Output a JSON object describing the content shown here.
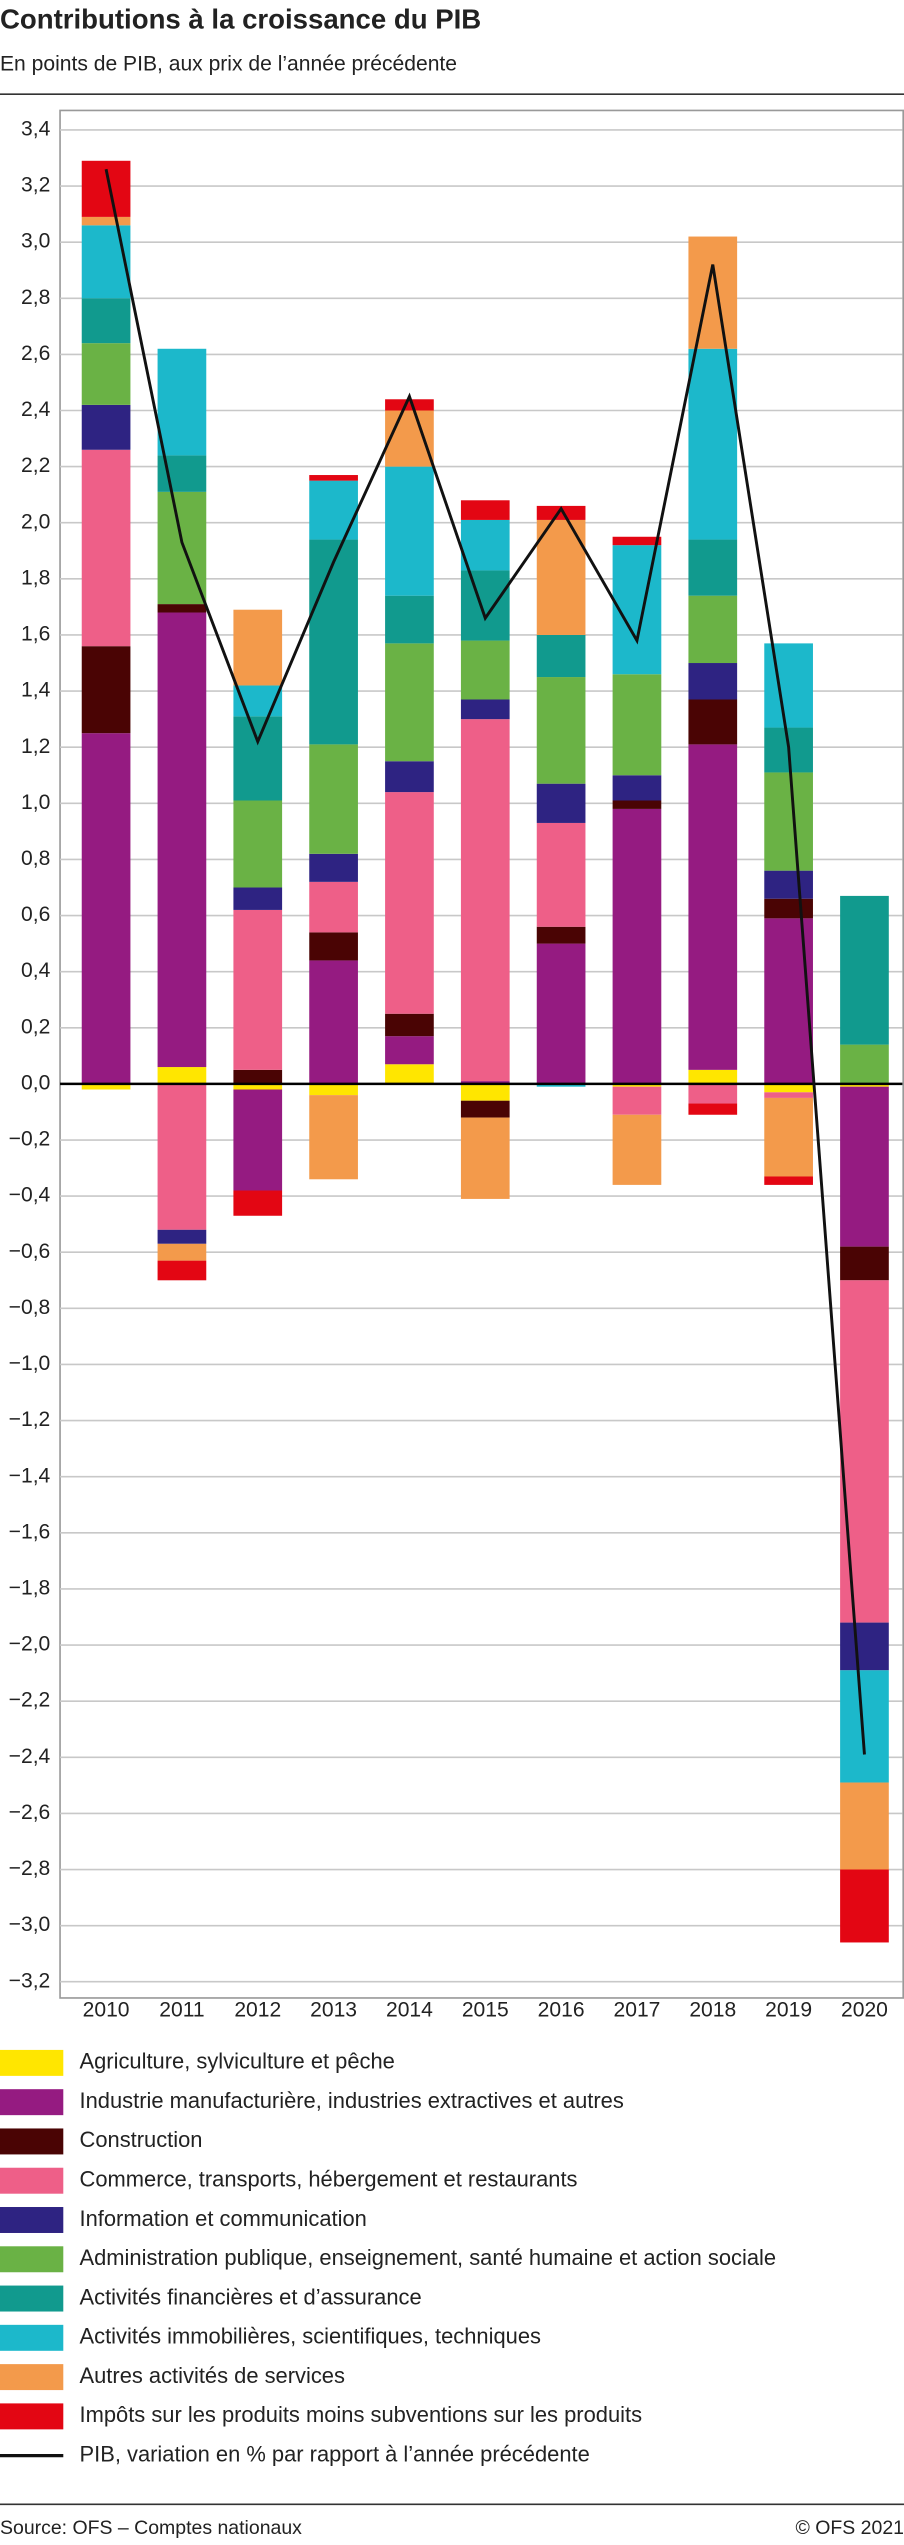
{
  "chart_data": {
    "type": "stacked-bar",
    "title": "Contributions à la croissance du PIB",
    "subtitle": "En points de PIB, aux prix de l’année précédente",
    "source": "Source: OFS – Comptes nationaux",
    "copyright": "© OFS 2021",
    "categories": [
      "2010",
      "2011",
      "2012",
      "2013",
      "2014",
      "2015",
      "2016",
      "2017",
      "2018",
      "2019",
      "2020"
    ],
    "series": [
      {
        "name": "Agriculture, sylviculture et pêche",
        "color": "#ffe600",
        "values": [
          -0.02,
          0.06,
          -0.02,
          -0.04,
          0.07,
          -0.06,
          0,
          -0.01,
          0.05,
          -0.03,
          -0.01
        ]
      },
      {
        "name": "Industrie manufacturière, industries extractives et autres",
        "color": "#951b81",
        "values": [
          1.25,
          1.62,
          -0.36,
          0.44,
          0.1,
          0.01,
          0.5,
          0.98,
          1.16,
          0.59,
          -0.57
        ]
      },
      {
        "name": "Construction",
        "color": "#4a0404",
        "values": [
          0.31,
          0.03,
          0.05,
          0.1,
          0.08,
          -0.06,
          0.06,
          0.03,
          0.16,
          0.07,
          -0.12
        ]
      },
      {
        "name": "Commerce, transports, hébergement et restaurants",
        "color": "#ee5f88",
        "values": [
          0.7,
          -0.52,
          0.57,
          0.18,
          0.79,
          1.29,
          0.37,
          -0.1,
          -0.07,
          -0.02,
          -1.22
        ]
      },
      {
        "name": "Information et communication",
        "color": "#2e2382",
        "values": [
          0.16,
          -0.05,
          0.08,
          0.1,
          0.11,
          0.07,
          0.14,
          0.09,
          0.13,
          0.1,
          -0.17
        ]
      },
      {
        "name": "Administration publique, enseignement, santé humaine et action sociale",
        "color": "#6ab245",
        "values": [
          0.22,
          0.4,
          0.31,
          0.39,
          0.42,
          0.21,
          0.38,
          0.36,
          0.24,
          0.35,
          0.14
        ]
      },
      {
        "name": "Activités financières et d’assurance",
        "color": "#119a8e",
        "values": [
          0.16,
          0.13,
          0.3,
          0.73,
          0.17,
          0.25,
          0.15,
          0,
          0.2,
          0.16,
          0.53
        ]
      },
      {
        "name": "Activités immobilières, scientifiques, techniques",
        "color": "#1cb8cb",
        "values": [
          0.26,
          0.38,
          0.11,
          0.21,
          0.46,
          0.18,
          -0.01,
          0.46,
          0.68,
          0.3,
          -0.4
        ]
      },
      {
        "name": "Autres activités de services",
        "color": "#f39a4b",
        "values": [
          0.03,
          -0.06,
          0.27,
          -0.3,
          0.2,
          -0.29,
          0.41,
          -0.25,
          0.4,
          -0.28,
          -0.31
        ]
      },
      {
        "name": "Impôts sur les produits moins subventions sur les produits",
        "color": "#e30613",
        "values": [
          0.2,
          -0.07,
          -0.09,
          0.02,
          0.04,
          0.07,
          0.05,
          0.03,
          -0.04,
          -0.03,
          -0.26
        ]
      }
    ],
    "line": {
      "name": "PIB, variation en % par rapport à l’année précédente",
      "color": "#111111",
      "values": [
        3.26,
        1.93,
        1.22,
        1.86,
        2.45,
        1.66,
        2.05,
        1.58,
        2.92,
        1.2,
        -2.39
      ]
    },
    "ylim": [
      -3.2,
      3.4
    ],
    "yticks": [
      {
        "value": 3.4,
        "label": "3,4"
      },
      {
        "value": 3.2,
        "label": "3,2"
      },
      {
        "value": 3.0,
        "label": "3,0"
      },
      {
        "value": 2.8,
        "label": "2,8"
      },
      {
        "value": 2.6,
        "label": "2,6"
      },
      {
        "value": 2.4,
        "label": "2,4"
      },
      {
        "value": 2.2,
        "label": "2,2"
      },
      {
        "value": 2.0,
        "label": "2,0"
      },
      {
        "value": 1.8,
        "label": "1,8"
      },
      {
        "value": 1.6,
        "label": "1,6"
      },
      {
        "value": 1.4,
        "label": "1,4"
      },
      {
        "value": 1.2,
        "label": "1,2"
      },
      {
        "value": 1.0,
        "label": "1,0"
      },
      {
        "value": 0.8,
        "label": "0,8"
      },
      {
        "value": 0.6,
        "label": "0,6"
      },
      {
        "value": 0.4,
        "label": "0,4"
      },
      {
        "value": 0.2,
        "label": "0,2"
      },
      {
        "value": 0,
        "label": "0,0"
      },
      {
        "value": -0.2,
        "label": "−0,2"
      },
      {
        "value": -0.4,
        "label": "−0,4"
      },
      {
        "value": -0.6,
        "label": "−0,6"
      },
      {
        "value": -0.8,
        "label": "−0,8"
      },
      {
        "value": -1.0,
        "label": "−1,0"
      },
      {
        "value": -1.2,
        "label": "−1,2"
      },
      {
        "value": -1.4,
        "label": "−1,4"
      },
      {
        "value": -1.6,
        "label": "−1,6"
      },
      {
        "value": -1.8,
        "label": "−1,8"
      },
      {
        "value": -2.0,
        "label": "−2,0"
      },
      {
        "value": -2.2,
        "label": "−2,2"
      },
      {
        "value": -2.4,
        "label": "−2,4"
      },
      {
        "value": -2.6,
        "label": "−2,6"
      },
      {
        "value": -2.8,
        "label": "−2,8"
      },
      {
        "value": -3.0,
        "label": "−3,0"
      },
      {
        "value": -3.2,
        "label": "−3,2"
      }
    ],
    "grid": true
  }
}
